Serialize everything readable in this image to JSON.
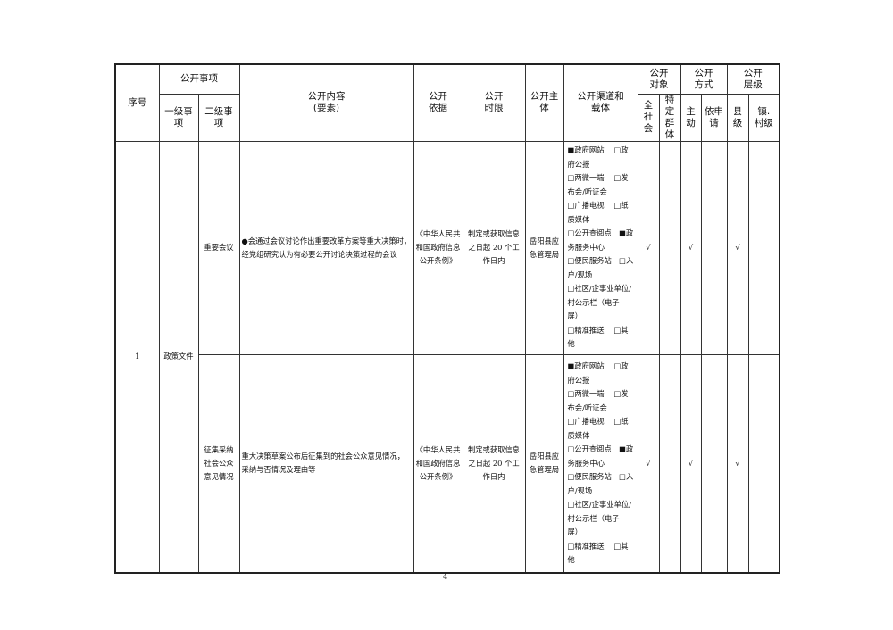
{
  "header": {
    "seq": "序号",
    "item": "公开事项",
    "level1": "一级事项",
    "level2": "二级事项",
    "content": "公开内容\n(要素)",
    "basis": "公开\n依据",
    "time": "公开\n时限",
    "subject": "公开主\n体",
    "channel": "公开渠道和\n载体",
    "target": "公开\n对象",
    "all": "全社\n会",
    "specific": "特定\n群体",
    "method": "公开\n方式",
    "active": "主\n动",
    "apply": "依申\n请",
    "level": "公开\n层级",
    "county": "县\n级",
    "town": "镇.\n村级"
  },
  "rows": [
    {
      "seq": "1",
      "level1": "政策文件",
      "level2": "重要会议",
      "content": "●会通过会议讨论作出重要改革方案等重大决策时，经党组研究认为有必要公开讨论决策过程的会议",
      "basis": "《中华人民共和国政府信息公开条例》",
      "time": "制定或获取信息之日起 20 个工作日内",
      "subject": "岳阳县应急管理局",
      "channel": "■政府网站　 □政府公报\n□两微一端　 □发布会/听证会\n□广播电视　 □纸质媒体\n□公开查阅点　■政务服务中心\n□便民服务站　□入户/现场\n□社区/企事业单位/村公示栏（电子屏）\n□精准推送　 □其他",
      "all": "√",
      "specific": "",
      "active": "√",
      "apply": "",
      "county": "√",
      "town": ""
    },
    {
      "level2": "征集采纳社会公众意见情况",
      "content": "重大决策草案公布后征集到的社会公众意见情况，采纳与否情况及理由等",
      "basis": "《中华人民共和国政府信息公开条例》",
      "time": "制定或获取信息之日起 20 个工作日内",
      "subject": "岳阳县应急管理局",
      "channel": "■政府网站　 □政府公报\n□两微一端　 □发布会/听证会\n□广播电视　 □纸质媒体\n□公开查阅点　■政务服务中心\n□便民服务站　□入户/现场\n□社区/企事业单位/村公示栏（电子屏）\n□精准推送　 □其他",
      "all": "√",
      "specific": "",
      "active": "√",
      "apply": "",
      "county": "√",
      "town": ""
    }
  ],
  "page_number": "4"
}
